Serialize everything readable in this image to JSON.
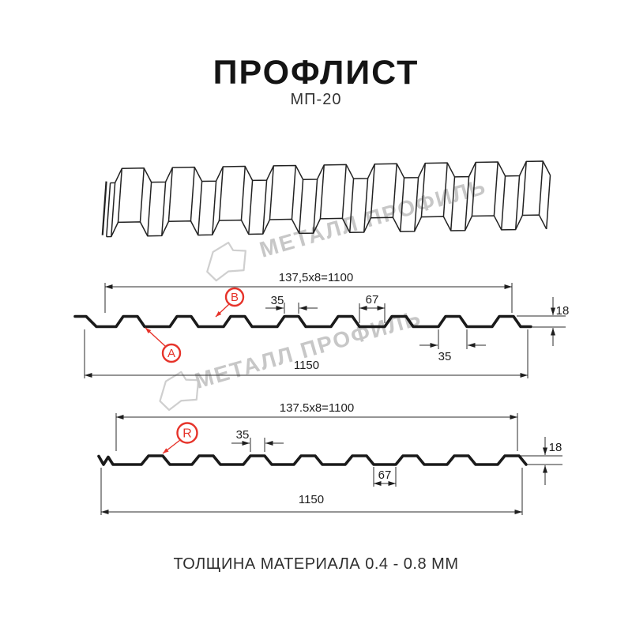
{
  "header": {
    "title": "ПРОФЛИСТ",
    "subtitle": "МП-20"
  },
  "watermark": {
    "text": "МЕТАЛЛ ПРОФИЛЬ"
  },
  "diagram1": {
    "dim_top": "137,5x8=1100",
    "dim_rib_top": "35",
    "dim_valley": "67",
    "dim_rib_bottom": "35",
    "dim_height": "18",
    "dim_total": "1150",
    "label_a": "A",
    "label_b": "B"
  },
  "diagram2": {
    "dim_top": "137.5x8=1100",
    "dim_rib_top": "35",
    "dim_valley": "67",
    "dim_height": "18",
    "dim_total": "1150",
    "label_r": "R"
  },
  "footer": {
    "text": "ТОЛЩИНА МАТЕРИАЛА 0.4 - 0.8 ММ"
  },
  "colors": {
    "accent_red": "#e6332a",
    "line": "#1a1a1a",
    "dimension": "#2b2b2b",
    "watermark": "#c7c7c7",
    "background": "#ffffff"
  }
}
